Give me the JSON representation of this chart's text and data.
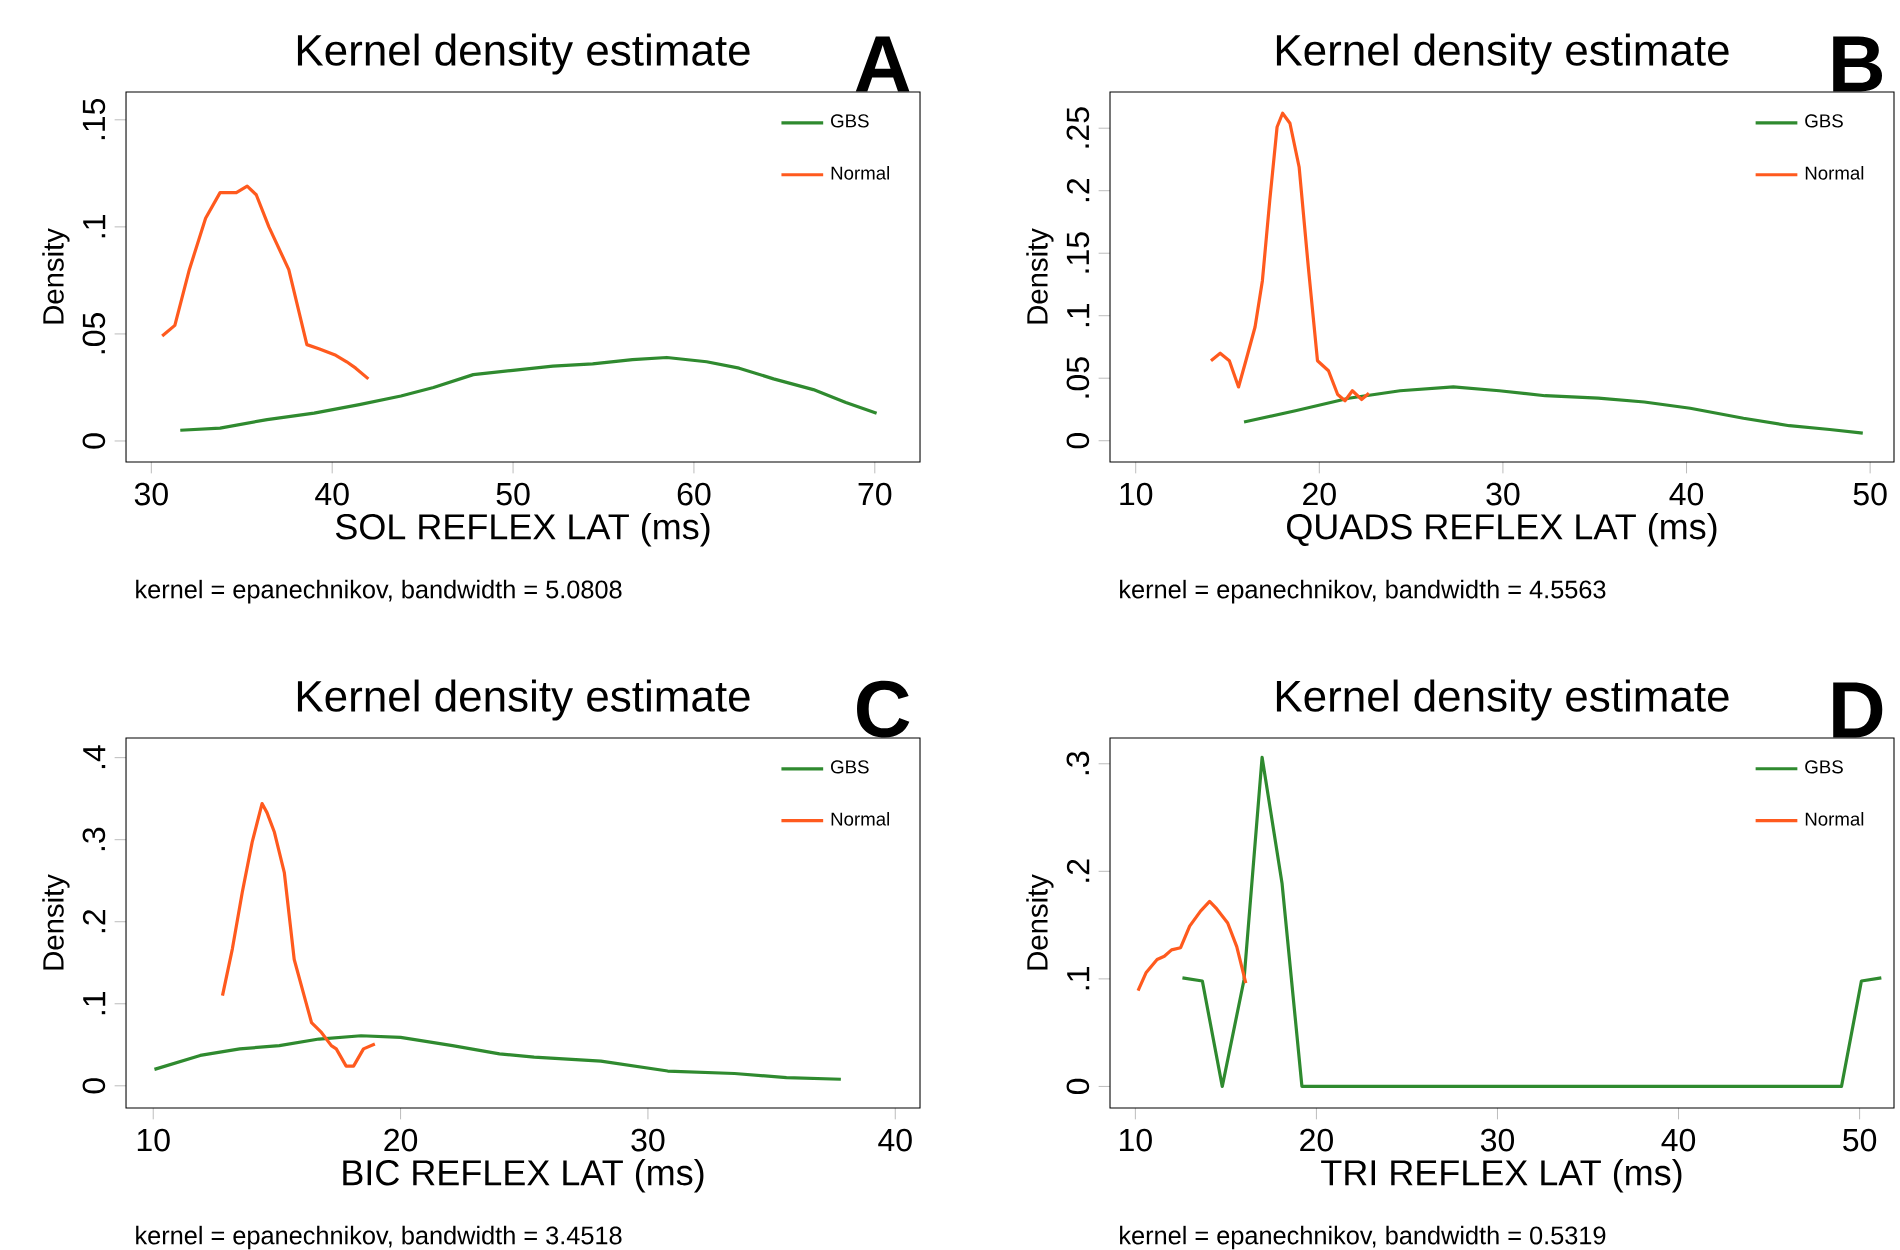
{
  "chart_data": [
    {
      "type": "line",
      "title": "Kernel density estimate",
      "xlabel": "SOL REFLEX LAT (ms)",
      "ylabel": "Density",
      "annotations": [
        "A",
        "kernel = epanechnikov, bandwidth = 5.0808"
      ],
      "legend": "top right",
      "xlim": [
        28.6,
        72.5
      ],
      "ylim": [
        -0.0098,
        0.163
      ],
      "xticks": [
        30,
        40,
        50,
        60,
        70
      ],
      "yticks": [
        0,
        {
          "value": 0.05,
          "label": ".05"
        },
        {
          "value": 0.1,
          "label": ".1"
        },
        {
          "value": 0.15,
          "label": ".15"
        }
      ],
      "series": [
        {
          "name": "GBS",
          "color": "#2f8a2f",
          "x": [
            31.6,
            33.8,
            36.4,
            39.0,
            41.5,
            43.8,
            45.6,
            47.8,
            50.0,
            52.2,
            54.4,
            56.6,
            58.5,
            60.7,
            62.5,
            64.4,
            66.6,
            68.4,
            70.1
          ],
          "values": [
            0.005,
            0.006,
            0.01,
            0.013,
            0.017,
            0.021,
            0.025,
            0.031,
            0.033,
            0.035,
            0.036,
            0.038,
            0.039,
            0.037,
            0.034,
            0.029,
            0.024,
            0.018,
            0.013
          ]
        },
        {
          "name": "Normal",
          "color": "#ff5a1e",
          "x": [
            30.6,
            31.3,
            32.1,
            33.0,
            33.8,
            34.7,
            35.3,
            35.8,
            36.5,
            37.6,
            38.6,
            39.3,
            40.2,
            40.8,
            41.3,
            42.0
          ],
          "values": [
            0.049,
            0.054,
            0.08,
            0.104,
            0.116,
            0.116,
            0.119,
            0.115,
            0.1,
            0.08,
            0.045,
            0.043,
            0.04,
            0.037,
            0.034,
            0.029
          ]
        }
      ]
    },
    {
      "type": "line",
      "title": "Kernel density estimate",
      "xlabel": "QUADS REFLEX LAT (ms)",
      "ylabel": "Density",
      "annotations": [
        "B",
        "kernel = epanechnikov, bandwidth = 4.5563"
      ],
      "legend": "top right",
      "xlim": [
        8.6,
        51.3
      ],
      "ylim": [
        -0.017,
        0.279
      ],
      "xticks": [
        10,
        20,
        30,
        40,
        50
      ],
      "yticks": [
        0,
        {
          "value": 0.05,
          "label": ".05"
        },
        {
          "value": 0.1,
          "label": ".1"
        },
        {
          "value": 0.15,
          "label": ".15"
        },
        {
          "value": 0.2,
          "label": ".2"
        },
        {
          "value": 0.25,
          "label": ".25"
        }
      ],
      "series": [
        {
          "name": "GBS",
          "color": "#2f8a2f",
          "x": [
            15.9,
            18.7,
            21.6,
            24.4,
            27.3,
            29.8,
            32.3,
            35.2,
            37.7,
            40.2,
            43.1,
            45.6,
            47.8,
            49.6
          ],
          "values": [
            0.015,
            0.024,
            0.034,
            0.04,
            0.043,
            0.04,
            0.036,
            0.034,
            0.031,
            0.026,
            0.018,
            0.012,
            0.009,
            0.006
          ]
        },
        {
          "name": "Normal",
          "color": "#ff5a1e",
          "x": [
            14.1,
            14.6,
            15.1,
            15.6,
            16.0,
            16.5,
            16.9,
            17.3,
            17.7,
            18.0,
            18.4,
            18.9,
            19.4,
            19.9,
            20.5,
            21.0,
            21.4,
            21.8,
            22.3,
            22.7
          ],
          "values": [
            0.064,
            0.07,
            0.064,
            0.043,
            0.064,
            0.091,
            0.128,
            0.192,
            0.251,
            0.262,
            0.254,
            0.219,
            0.139,
            0.064,
            0.056,
            0.037,
            0.032,
            0.04,
            0.033,
            0.038
          ]
        }
      ]
    },
    {
      "type": "line",
      "title": "Kernel density estimate",
      "xlabel": "BIC REFLEX LAT (ms)",
      "ylabel": "Density",
      "annotations": [
        "C",
        "kernel = epanechnikov, bandwidth = 3.4518"
      ],
      "legend": "top right",
      "xlim": [
        8.9,
        41.0
      ],
      "ylim": [
        -0.027,
        0.424
      ],
      "xticks": [
        10,
        20,
        30,
        40
      ],
      "yticks": [
        0,
        {
          "value": 0.1,
          "label": ".1"
        },
        {
          "value": 0.2,
          "label": ".2"
        },
        {
          "value": 0.3,
          "label": ".3"
        },
        {
          "value": 0.4,
          "label": ".4"
        }
      ],
      "series": [
        {
          "name": "GBS",
          "color": "#2f8a2f",
          "x": [
            10.05,
            11.9,
            13.5,
            15.1,
            16.7,
            18.4,
            20.0,
            22.1,
            24.0,
            25.4,
            28.1,
            30.8,
            33.5,
            35.6,
            37.8
          ],
          "values": [
            0.02,
            0.037,
            0.045,
            0.049,
            0.057,
            0.061,
            0.059,
            0.049,
            0.039,
            0.035,
            0.03,
            0.018,
            0.015,
            0.01,
            0.008
          ]
        },
        {
          "name": "Normal",
          "color": "#ff5a1e",
          "x": [
            12.8,
            13.2,
            13.6,
            14.0,
            14.4,
            14.6,
            14.9,
            15.3,
            15.7,
            16.1,
            16.4,
            16.8,
            17.2,
            17.4,
            17.8,
            18.1,
            18.5,
            18.96
          ],
          "values": [
            0.11,
            0.167,
            0.236,
            0.297,
            0.344,
            0.333,
            0.309,
            0.26,
            0.154,
            0.11,
            0.077,
            0.065,
            0.049,
            0.045,
            0.024,
            0.024,
            0.045,
            0.051
          ]
        }
      ]
    },
    {
      "type": "line",
      "title": "Kernel density estimate",
      "xlabel": "TRI REFLEX LAT (ms)",
      "ylabel": "Density",
      "annotations": [
        "D",
        "kernel = epanechnikov, bandwidth = 0.5319"
      ],
      "legend": "top right",
      "xlim": [
        8.6,
        51.9
      ],
      "ylim": [
        -0.02,
        0.324
      ],
      "xticks": [
        10,
        20,
        30,
        40,
        50
      ],
      "yticks": [
        0,
        {
          "value": 0.1,
          "label": ".1"
        },
        {
          "value": 0.2,
          "label": ".2"
        },
        {
          "value": 0.3,
          "label": ".3"
        }
      ],
      "series": [
        {
          "name": "GBS",
          "color": "#2f8a2f",
          "x": [
            12.6,
            13.7,
            14.8,
            16.0,
            17.0,
            18.1,
            19.2,
            49.0,
            50.1,
            51.2
          ],
          "values": [
            0.101,
            0.098,
            0,
            0.099,
            0.306,
            0.189,
            0,
            0,
            0.098,
            0.101
          ]
        },
        {
          "name": "Normal",
          "color": "#ff5a1e",
          "x": [
            10.15,
            10.6,
            11.2,
            11.6,
            12.0,
            12.5,
            13.0,
            13.6,
            14.1,
            14.5,
            15.1,
            15.6,
            16.1
          ],
          "values": [
            0.089,
            0.106,
            0.118,
            0.121,
            0.127,
            0.129,
            0.149,
            0.163,
            0.172,
            0.165,
            0.152,
            0.13,
            0.096
          ]
        }
      ]
    }
  ]
}
